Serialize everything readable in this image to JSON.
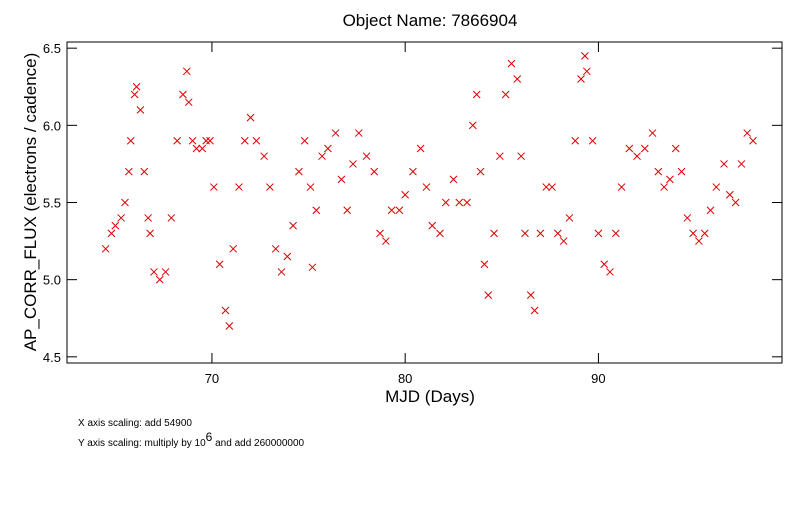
{
  "chart_data": {
    "type": "scatter",
    "title": "Object Name:  7866904",
    "xlabel": "MJD (Days)",
    "ylabel": "AP_CORR_FLUX (electrons / cadence)",
    "notes": [
      [
        "X axis scaling: add 54900"
      ],
      [
        "Y axis scaling: multiply by 10",
        "6",
        " and add 260000000"
      ]
    ],
    "xlim": [
      62.5,
      99.5
    ],
    "ylim": [
      4.46,
      6.54
    ],
    "xticks": [
      70,
      80,
      90
    ],
    "yticks": [
      4.5,
      {
        "value": 5,
        "label": "5.0"
      },
      5.5,
      {
        "value": 6,
        "label": "6.0"
      },
      6.5
    ],
    "marker": "x",
    "series": [
      {
        "color": "#dd0000",
        "x": [
          64.5,
          64.8,
          65,
          65.3,
          65.5,
          65.7,
          65.8,
          66,
          66.1,
          66.3,
          66.5,
          66.7,
          66.8,
          67,
          67.3,
          67.6,
          67.9,
          68.2,
          68.5,
          68.7,
          68.8,
          69,
          69.2,
          69.5,
          69.7,
          69.9,
          70.1,
          70.4,
          70.7,
          70.9,
          71.1,
          71.4,
          71.7,
          72,
          72.3,
          72.7,
          73,
          73.3,
          73.6,
          73.9,
          74.2,
          74.5,
          74.8,
          75.1,
          75.2,
          75.4,
          75.7,
          76,
          76.4,
          76.7,
          77,
          77.3,
          77.6,
          78,
          78.4,
          78.7,
          79,
          79.3,
          79.7,
          80,
          80.4,
          80.8,
          81.1,
          81.4,
          81.8,
          82.1,
          82.5,
          82.8,
          83.2,
          83.5,
          83.7,
          83.9,
          84.1,
          84.3,
          84.6,
          84.9,
          85.2,
          85.5,
          85.8,
          86,
          86.2,
          86.5,
          86.7,
          87,
          87.3,
          87.6,
          87.9,
          88.2,
          88.5,
          88.8,
          89.1,
          89.3,
          89.4,
          89.7,
          90,
          90.3,
          90.6,
          90.9,
          91.2,
          91.6,
          92,
          92.4,
          92.8,
          93.1,
          93.4,
          93.7,
          94,
          94.3,
          94.6,
          94.9,
          95.2,
          95.5,
          95.8,
          96.1,
          96.5,
          96.8,
          97.1,
          97.4,
          97.7,
          98
        ],
        "values": [
          5.2,
          5.3,
          5.35,
          5.4,
          5.5,
          5.7,
          5.9,
          6.2,
          6.25,
          6.1,
          5.7,
          5.4,
          5.3,
          5.05,
          5.0,
          5.05,
          5.4,
          5.9,
          6.2,
          6.35,
          6.15,
          5.9,
          5.85,
          5.85,
          5.9,
          5.9,
          5.6,
          5.1,
          4.8,
          4.7,
          5.2,
          5.6,
          5.9,
          6.05,
          5.9,
          5.8,
          5.6,
          5.2,
          5.05,
          5.15,
          5.35,
          5.7,
          5.9,
          5.6,
          5.08,
          5.45,
          5.8,
          5.85,
          5.95,
          5.65,
          5.45,
          5.75,
          5.95,
          5.8,
          5.7,
          5.3,
          5.25,
          5.45,
          5.45,
          5.55,
          5.7,
          5.85,
          5.6,
          5.35,
          5.3,
          5.5,
          5.65,
          5.5,
          5.5,
          6.0,
          6.2,
          5.7,
          5.1,
          4.9,
          5.3,
          5.8,
          6.2,
          6.4,
          6.3,
          5.8,
          5.3,
          4.9,
          4.8,
          5.3,
          5.6,
          5.6,
          5.3,
          5.25,
          5.4,
          5.9,
          6.3,
          6.45,
          6.35,
          5.9,
          5.3,
          5.1,
          5.05,
          5.3,
          5.6,
          5.85,
          5.8,
          5.85,
          5.95,
          5.7,
          5.6,
          5.65,
          5.85,
          5.7,
          5.4,
          5.3,
          5.25,
          5.3,
          5.45,
          5.6,
          5.75,
          5.55,
          5.5,
          5.75,
          5.95,
          5.9
        ]
      }
    ]
  }
}
